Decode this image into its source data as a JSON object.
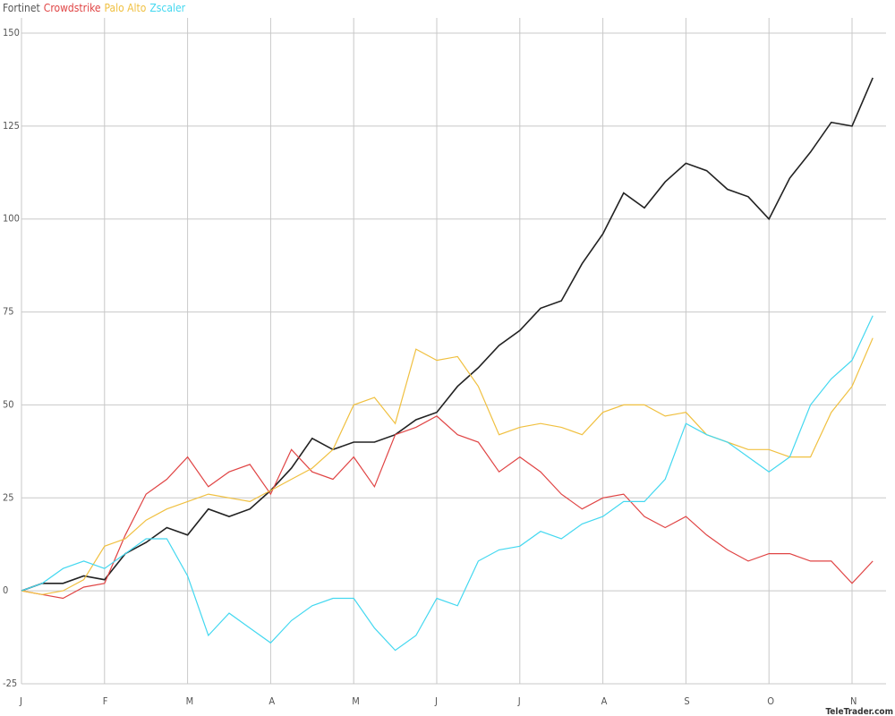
{
  "chart_data": {
    "type": "line",
    "categories": [
      "J",
      null,
      null,
      null,
      "F",
      null,
      null,
      null,
      "M",
      null,
      null,
      null,
      "A",
      null,
      null,
      null,
      "M",
      null,
      null,
      null,
      "J",
      null,
      null,
      null,
      "J",
      null,
      null,
      null,
      "A",
      null,
      null,
      null,
      "S",
      null,
      null,
      null,
      "O",
      null,
      null,
      null,
      "N",
      null
    ],
    "series": [
      {
        "name": "Fortinet",
        "color": "#222222",
        "values": [
          0,
          2,
          2,
          4,
          3,
          10,
          13,
          17,
          15,
          22,
          20,
          22,
          27,
          33,
          41,
          38,
          40,
          40,
          42,
          46,
          48,
          55,
          60,
          66,
          70,
          76,
          78,
          88,
          96,
          107,
          103,
          110,
          115,
          113,
          108,
          106,
          100,
          111,
          118,
          126,
          125,
          138
        ]
      },
      {
        "name": "Crowdstrike",
        "color": "#e04444",
        "values": [
          0,
          -1,
          -2,
          1,
          2,
          15,
          26,
          30,
          36,
          28,
          32,
          34,
          26,
          38,
          32,
          30,
          36,
          28,
          42,
          44,
          47,
          42,
          40,
          32,
          36,
          32,
          26,
          22,
          25,
          26,
          20,
          17,
          20,
          15,
          11,
          8,
          10,
          10,
          8,
          8,
          2,
          8
        ]
      },
      {
        "name": "Palo Alto",
        "color": "#f0c040",
        "values": [
          0,
          -1,
          0,
          3,
          12,
          14,
          19,
          22,
          24,
          26,
          25,
          24,
          27,
          30,
          33,
          38,
          50,
          52,
          45,
          65,
          62,
          63,
          55,
          42,
          44,
          45,
          44,
          42,
          48,
          50,
          50,
          47,
          48,
          42,
          40,
          38,
          38,
          36,
          36,
          48,
          55,
          68
        ]
      },
      {
        "name": "Zscaler",
        "color": "#44d8f0",
        "values": [
          0,
          2,
          6,
          8,
          6,
          10,
          14,
          14,
          4,
          -12,
          -6,
          -10,
          -14,
          -8,
          -4,
          -2,
          -2,
          -10,
          -16,
          -12,
          -2,
          -4,
          8,
          11,
          12,
          16,
          14,
          18,
          20,
          24,
          24,
          30,
          45,
          42,
          40,
          36,
          32,
          36,
          50,
          57,
          62,
          74
        ]
      }
    ],
    "ylim": [
      -25,
      150
    ],
    "yticks": [
      150,
      125,
      100,
      75,
      50,
      25,
      0,
      -25
    ],
    "grid": true,
    "watermark": "TeleTrader.com"
  }
}
